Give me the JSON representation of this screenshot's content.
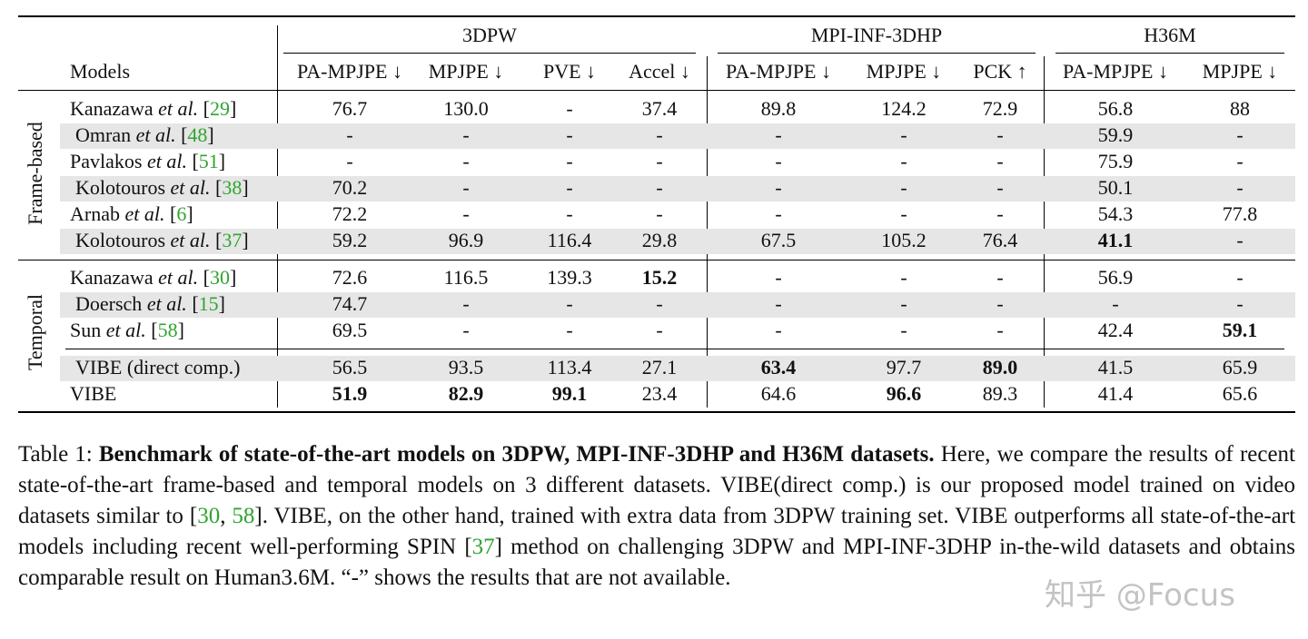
{
  "groups": [
    {
      "label": "3DPW"
    },
    {
      "label": "MPI-INF-3DHP"
    },
    {
      "label": "H36M"
    }
  ],
  "models_header": "Models",
  "metrics": [
    "PA-MPJPE ↓",
    "MPJPE ↓",
    "PVE ↓",
    "Accel ↓",
    "PA-MPJPE ↓",
    "MPJPE ↓",
    "PCK ↑",
    "PA-MPJPE ↓",
    "MPJPE ↓"
  ],
  "section_labels": {
    "frame": "Frame-based",
    "temporal": "Temporal"
  },
  "rows": [
    {
      "name": "Kanazawa",
      "etal": "et al.",
      "cite": "29",
      "vals": [
        "76.7",
        "130.0",
        "-",
        "37.4",
        "89.8",
        "124.2",
        "72.9",
        "56.8",
        "88"
      ],
      "bold": []
    },
    {
      "name": "Omran",
      "etal": "et al.",
      "cite": "48",
      "vals": [
        "-",
        "-",
        "-",
        "-",
        "-",
        "-",
        "-",
        "59.9",
        "-"
      ],
      "bold": []
    },
    {
      "name": "Pavlakos",
      "etal": "et al.",
      "cite": "51",
      "vals": [
        "-",
        "-",
        "-",
        "-",
        "-",
        "-",
        "-",
        "75.9",
        "-"
      ],
      "bold": []
    },
    {
      "name": "Kolotouros",
      "etal": "et al.",
      "cite": "38",
      "vals": [
        "70.2",
        "-",
        "-",
        "-",
        "-",
        "-",
        "-",
        "50.1",
        "-"
      ],
      "bold": []
    },
    {
      "name": "Arnab",
      "etal": "et al.",
      "cite": "6",
      "vals": [
        "72.2",
        "-",
        "-",
        "-",
        "-",
        "-",
        "-",
        "54.3",
        "77.8"
      ],
      "bold": []
    },
    {
      "name": "Kolotouros",
      "etal": "et al.",
      "cite": "37",
      "vals": [
        "59.2",
        "96.9",
        "116.4",
        "29.8",
        "67.5",
        "105.2",
        "76.4",
        "41.1",
        "-"
      ],
      "bold": [
        7
      ]
    },
    {
      "name": "Kanazawa",
      "etal": "et al.",
      "cite": "30",
      "vals": [
        "72.6",
        "116.5",
        "139.3",
        "15.2",
        "-",
        "-",
        "-",
        "56.9",
        "-"
      ],
      "bold": [
        3
      ]
    },
    {
      "name": "Doersch",
      "etal": "et al.",
      "cite": "15",
      "vals": [
        "74.7",
        "-",
        "-",
        "-",
        "-",
        "-",
        "-",
        "-",
        "-"
      ],
      "bold": []
    },
    {
      "name": "Sun",
      "etal": "et al.",
      "cite": "58",
      "vals": [
        "69.5",
        "-",
        "-",
        "-",
        "-",
        "-",
        "-",
        "42.4",
        "59.1"
      ],
      "bold": [
        8
      ]
    },
    {
      "name": "VIBE (direct comp.)",
      "etal": "",
      "cite": "",
      "vals": [
        "56.5",
        "93.5",
        "113.4",
        "27.1",
        "63.4",
        "97.7",
        "89.0",
        "41.5",
        "65.9"
      ],
      "bold": [
        4,
        6
      ]
    },
    {
      "name": "VIBE",
      "etal": "",
      "cite": "",
      "vals": [
        "51.9",
        "82.9",
        "99.1",
        "23.4",
        "64.6",
        "96.6",
        "89.3",
        "41.4",
        "65.6"
      ],
      "bold": [
        0,
        1,
        2,
        5
      ]
    }
  ],
  "caption": {
    "prefix": "Table 1: ",
    "bold": "Benchmark of state-of-the-art models on 3DPW, MPI-INF-3DHP and H36M datasets.",
    "t1": " Here, we compare the results of recent state-of-the-art frame-based and temporal models on 3 different datasets. VIBE(direct comp.) is our proposed model trained on video datasets similar to [",
    "c1": "30",
    "t2": ", ",
    "c2": "58",
    "t3": "]. VIBE, on the other hand, trained with extra data from 3DPW training set. VIBE outperforms all state-of-the-art models including recent well-performing SPIN [",
    "c3": "37",
    "t4": "] method on challenging 3DPW and MPI-INF-3DHP in-the-wild datasets and obtains comparable result on Human3.6M. “-” shows the results that are not available."
  },
  "watermark": "知乎 @Focus",
  "colors": {
    "citation": "#2fa52f",
    "shade": "#e6e6e6"
  }
}
